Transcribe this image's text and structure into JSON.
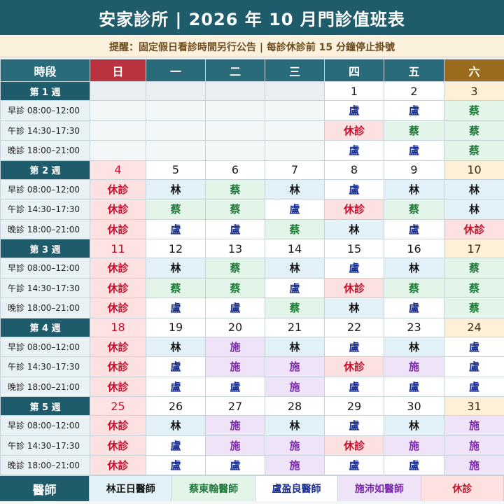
{
  "title": "安家診所 | 2026 年 10 月門診值班表",
  "notice": "提醒：固定假日看診時間另行公告 | 每診休診前 15 分鐘停止掛號",
  "header": {
    "slot": "時段",
    "days": [
      "日",
      "一",
      "二",
      "三",
      "四",
      "五",
      "六"
    ]
  },
  "slots": [
    "早診 08:00–12:00",
    "午診 14:30–17:30",
    "晚診 18:00–21:00"
  ],
  "doctors": {
    "lin": "林",
    "cai": "蔡",
    "lu": "盧",
    "shi": "施",
    "off": "休診"
  },
  "weeks": [
    {
      "label": "第 1 週",
      "dates": [
        "",
        "",
        "",
        "",
        "1",
        "2",
        "3"
      ],
      "rows": [
        [
          "",
          "",
          "",
          "",
          "lu",
          "lu",
          "cai"
        ],
        [
          "",
          "",
          "",
          "",
          "off",
          "cai",
          "cai"
        ],
        [
          "",
          "",
          "",
          "",
          "lu",
          "lu",
          "cai"
        ]
      ]
    },
    {
      "label": "第 2 週",
      "dates": [
        "4",
        "5",
        "6",
        "7",
        "8",
        "9",
        "10"
      ],
      "rows": [
        [
          "off",
          "lin",
          "cai",
          "lin",
          "lu",
          "lin",
          "lin"
        ],
        [
          "off",
          "cai",
          "cai",
          "lu",
          "off",
          "cai",
          "lin"
        ],
        [
          "off",
          "lu",
          "lu",
          "cai",
          "lin",
          "lu",
          "off"
        ]
      ]
    },
    {
      "label": "第 3 週",
      "dates": [
        "11",
        "12",
        "13",
        "14",
        "15",
        "16",
        "17"
      ],
      "rows": [
        [
          "off",
          "lin",
          "cai",
          "lin",
          "lu",
          "lin",
          "cai"
        ],
        [
          "off",
          "cai",
          "cai",
          "lu",
          "off",
          "cai",
          "cai"
        ],
        [
          "off",
          "lu",
          "lu",
          "cai",
          "lin",
          "lu",
          "cai"
        ]
      ]
    },
    {
      "label": "第 4 週",
      "dates": [
        "18",
        "19",
        "20",
        "21",
        "22",
        "23",
        "24"
      ],
      "rows": [
        [
          "off",
          "lin",
          "shi",
          "lin",
          "lu",
          "lin",
          "lu"
        ],
        [
          "off",
          "lu",
          "shi",
          "shi",
          "off",
          "shi",
          "lu"
        ],
        [
          "off",
          "lu",
          "lu",
          "shi",
          "lu",
          "lu",
          "lu"
        ]
      ]
    },
    {
      "label": "第 5 週",
      "dates": [
        "25",
        "26",
        "27",
        "28",
        "29",
        "30",
        "31"
      ],
      "rows": [
        [
          "off",
          "lin",
          "shi",
          "lin",
          "lu",
          "lin",
          "shi"
        ],
        [
          "off",
          "lu",
          "shi",
          "shi",
          "off",
          "shi",
          "shi"
        ],
        [
          "off",
          "lu",
          "lu",
          "shi",
          "lu",
          "lu",
          "shi"
        ]
      ]
    }
  ],
  "legend": {
    "title": "醫師",
    "items": [
      {
        "key": "lin",
        "label": "林正日醫師"
      },
      {
        "key": "cai",
        "label": "蔡東翰醫師"
      },
      {
        "key": "lu",
        "label": "盧盈良醫師"
      },
      {
        "key": "shi",
        "label": "施沛如醫師"
      },
      {
        "key": "off",
        "label": "休診"
      }
    ]
  }
}
